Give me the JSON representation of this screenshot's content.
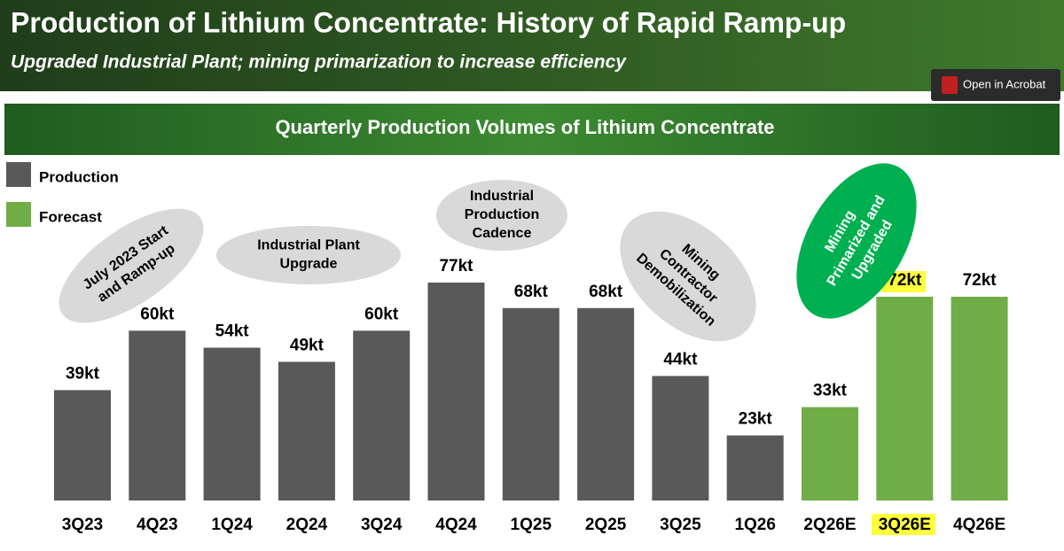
{
  "header": {
    "title": "Production of Lithium Concentrate: History of Rapid Ramp-up",
    "subtitle": "Upgraded Industrial Plant; mining primarization to increase efficiency"
  },
  "button": {
    "label": "Open in Acrobat"
  },
  "chart_data": {
    "type": "bar",
    "title": "Quarterly Production Volumes of Lithium Concentrate",
    "categories": [
      "3Q23",
      "4Q23",
      "1Q24",
      "2Q24",
      "3Q24",
      "4Q24",
      "1Q25",
      "2Q25",
      "3Q25",
      "1Q26",
      "2Q26E",
      "3Q26E",
      "4Q26E"
    ],
    "series": [
      {
        "name": "Production",
        "color": "#595959",
        "values": [
          39,
          60,
          54,
          49,
          60,
          77,
          68,
          68,
          44,
          23,
          null,
          null,
          null
        ],
        "value_labels": [
          "39kt",
          "60kt",
          "54kt",
          "49kt",
          "60kt",
          "77kt",
          "68kt",
          "68kt",
          "44kt",
          "23kt",
          null,
          null,
          null
        ]
      },
      {
        "name": "Forecast",
        "color": "#70ad47",
        "values": [
          null,
          null,
          null,
          null,
          null,
          null,
          null,
          null,
          null,
          null,
          33,
          72,
          72
        ],
        "value_labels": [
          null,
          null,
          null,
          null,
          null,
          null,
          null,
          null,
          null,
          null,
          "33kt",
          "72kt",
          "72kt"
        ]
      }
    ],
    "legend": "top-left",
    "annotations": [
      [
        "July 2023 Start",
        "and Ramp-up"
      ],
      [
        "Industrial Plant",
        "Upgrade"
      ],
      [
        "Industrial",
        "Production",
        "Cadence"
      ],
      [
        "Mining",
        "Contractor",
        "Demobilization"
      ],
      [
        "Mining",
        "Primarized and",
        "Upgraded"
      ]
    ]
  }
}
